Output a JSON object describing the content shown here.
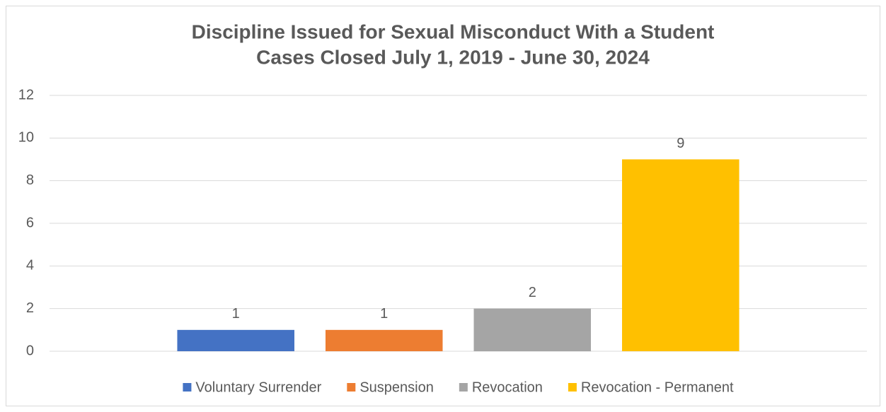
{
  "chart_data": {
    "type": "bar",
    "title": [
      "Discipline Issued for Sexual Misconduct With a Student",
      "Cases Closed July 1, 2019 - June 30, 2024"
    ],
    "categories": [
      null
    ],
    "series": [
      {
        "name": "Voluntary Surrender",
        "color": "#4472c4",
        "values": [
          1
        ]
      },
      {
        "name": "Suspension",
        "color": "#ed7d31",
        "values": [
          1
        ]
      },
      {
        "name": "Revocation",
        "color": "#a5a5a5",
        "values": [
          2
        ]
      },
      {
        "name": "Revocation - Permanent",
        "color": "#ffc000",
        "values": [
          9
        ]
      }
    ],
    "ylim": [
      0,
      12
    ],
    "yticks": [
      0,
      2,
      4,
      6,
      8,
      10,
      12
    ],
    "grid": true,
    "legend": "bottom"
  }
}
